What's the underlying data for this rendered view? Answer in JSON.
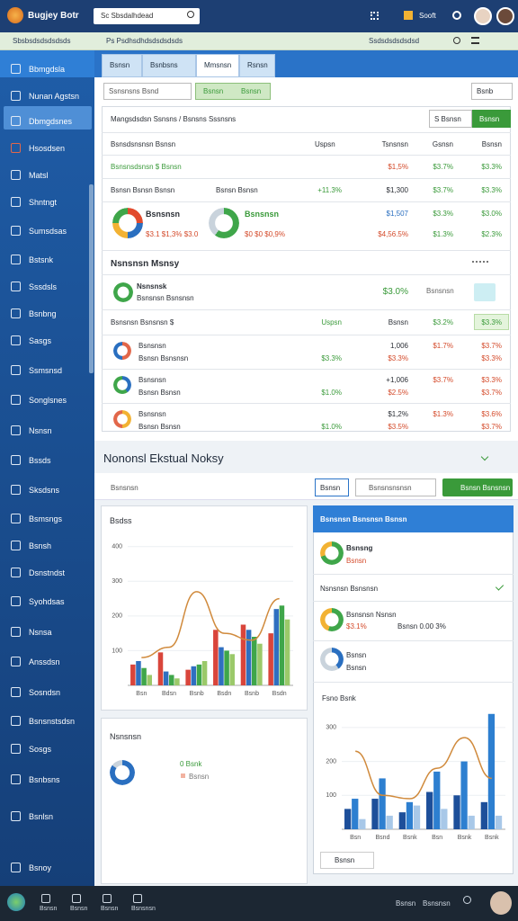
{
  "topbar": {
    "brand": "Bugjey Botr",
    "search": "Sc Sbsdalhdead",
    "user": "Sooft"
  },
  "subbar": {
    "items": [
      "Sbsbsdsdsdsdsds",
      "Ps Psdhsdhdsdsdsdsds",
      "Ssdsdsdsdsdsd"
    ]
  },
  "sidebar": {
    "items": [
      "Bbmgdsla",
      "Nunan Agstsn",
      "Dbmgdsnes",
      "Hsosdsen",
      "Matsl",
      "Shntngt",
      "Sumsdsas",
      "Bstsnk",
      "Sssdsls",
      "Bsnbng",
      "Sasgs",
      "Ssmsnsd",
      "Songlsnes",
      "Nsnsn",
      "Bssds",
      "Sksdsns",
      "Bsmsngs",
      "Bsnsh",
      "Dsnstndst",
      "Syohdsas",
      "Nsnsa",
      "Anssdsn",
      "Sosndsn",
      "Bsnsnstsdsn",
      "Sosgs",
      "Bsnbsns",
      "Bsnlsn",
      "Bsnoy"
    ]
  },
  "tabs": [
    "Bsnsn",
    "Bsnbsns",
    "Mmsnsn",
    "Rsnsn"
  ],
  "toolbar": {
    "search": "Ssnsnsns Bsnd",
    "buttons": [
      "Bsnsn",
      "Bsnsn"
    ],
    "right": "Bsnb"
  },
  "card": {
    "title": "Mangsdsdsn Ssnsns / Bsnsns Sssnsns",
    "button": "S Bsnsn",
    "primary": "Bsnsn",
    "columns": [
      "Bsnsdsnsnsn Bsnsn",
      "Uspsn",
      "Tsnsnsn",
      "Gsnsn",
      "Bsnsn"
    ],
    "row1": {
      "name": "Bsnsnsdsnsn $ Bsnsn",
      "cells": [
        "$1,5%",
        "$3.7%",
        "$3.3%"
      ]
    },
    "row2": {
      "name": "Bsnsn Bsnsn Bsnsn",
      "sub": "Bsnsn Bsnsn",
      "change": "+11.3%",
      "cells": [
        "$1,300",
        "$3.7%",
        "$3.3%"
      ]
    },
    "row3": {
      "a": {
        "name": "Bsnsnsn",
        "sub": "$3.1 $1,3% $3.0"
      },
      "b": {
        "name": "Bsnsnsn",
        "sub": "$0 $0 $0,9%"
      },
      "line1": [
        "$1,507",
        "$3.3%",
        "$3.0%"
      ],
      "line2": [
        "$4,56.5%",
        "$1.3%",
        "$2.3%"
      ]
    },
    "section": {
      "title": "Nsnsnsn Msnsy",
      "name": "Nsnsnsk",
      "sub": "Bsnsnsn Bsnsnsn",
      "value": "$3.0%",
      "label": "Bsnsnsn"
    },
    "columns2": [
      "Bsnsnsn Bsnsnsn $",
      "Uspsn",
      "Bsnsn",
      "$3.2%",
      "$3.3%"
    ],
    "rows": [
      {
        "name": "Bsnsnsn",
        "sub": "Bsnsn Bsnsnsn",
        "line1": [
          "1,006",
          "$1.7%",
          "$3.7%"
        ],
        "line2": [
          "$3.3%",
          "$3.3%",
          "$3.3%"
        ]
      },
      {
        "name": "Bsnsnsn",
        "sub": "Bsnsn Bsnsn",
        "line1": [
          "+1,006",
          "$3.7%",
          "$3.3%"
        ],
        "line2": [
          "$1.0%",
          "$2.5%",
          "$3.7%"
        ]
      },
      {
        "name": "Bsnsnsn",
        "sub": "Bsnsn Bsnsn",
        "line1": [
          "$1,2%",
          "$1.3%",
          "$3.6%"
        ],
        "line2": [
          "$1.0%",
          "$3.5%",
          "$3.7%"
        ]
      }
    ]
  },
  "section2": {
    "title": "Nononsl Ekstual Noksy",
    "filter": "Bsnsnsn",
    "select": "Bsnsn",
    "dropdown": "Bsnsnsnsnsn",
    "button": "Bsnsn Bsnsnsn"
  },
  "lower_left": {
    "title": "Nsnsnsn",
    "value": "0 Bsnk",
    "legend": "Bsnsn"
  },
  "right_panel": {
    "title": "Bsnsnsn Bsnsnsn Bsnsn",
    "item1": {
      "name": "Bsnsng",
      "sub": "Bsnsn"
    },
    "item2": "Nsnsnsn Bsnsnsn",
    "item3": {
      "name": "Bsnsnsn Nsnsn",
      "sub": "$3.1%",
      "note": "Bsnsn 0.00 3%"
    },
    "item4": {
      "name": "Bsnsn",
      "sub": "Bsnsn"
    },
    "button": "Bsnsn"
  },
  "taskbar": {
    "items": [
      "Bsnsn",
      "Bsnsn",
      "Bsnsn",
      "Bsnsnsn"
    ],
    "right": [
      "Bsnsn",
      "Bsnsnsn"
    ]
  },
  "chart_data": [
    {
      "type": "bar",
      "title": "Bsdss",
      "categories": [
        "Bsn",
        "Bdsn",
        "Bsnb",
        "Bsdn",
        "Bsnb",
        "Bsdn"
      ],
      "ylim": [
        0,
        420
      ],
      "yticks": [
        100,
        200,
        300,
        400
      ],
      "grid": true,
      "series": [
        {
          "color": "#d9453b",
          "values": [
            60,
            95,
            45,
            160,
            175,
            150
          ]
        },
        {
          "color": "#2f6fc0",
          "values": [
            70,
            40,
            55,
            110,
            160,
            220
          ]
        },
        {
          "color": "#3fa64a",
          "values": [
            50,
            30,
            60,
            100,
            140,
            230
          ]
        },
        {
          "color": "#9bc96a",
          "values": [
            30,
            20,
            70,
            90,
            120,
            190
          ]
        },
        {
          "type": "line",
          "color": "#d08a3c",
          "values": [
            80,
            110,
            270,
            150,
            130,
            250
          ]
        }
      ]
    },
    {
      "type": "bar",
      "title": "Fsno Bsnk",
      "categories": [
        "Bsn",
        "Bsnd",
        "Bsnk",
        "Bsn",
        "Bsnk",
        "Bsnk"
      ],
      "ylim": [
        0,
        350
      ],
      "yticks": [
        100,
        200,
        300
      ],
      "grid": true,
      "series": [
        {
          "color": "#1d4f9a",
          "values": [
            60,
            90,
            50,
            110,
            100,
            80
          ]
        },
        {
          "color": "#2d7fd0",
          "values": [
            90,
            150,
            80,
            170,
            200,
            340
          ]
        },
        {
          "color": "#a8c8e8",
          "values": [
            30,
            40,
            70,
            60,
            40,
            40
          ]
        },
        {
          "type": "line",
          "color": "#d08a3c",
          "values": [
            230,
            100,
            90,
            180,
            270,
            150
          ]
        }
      ]
    }
  ]
}
